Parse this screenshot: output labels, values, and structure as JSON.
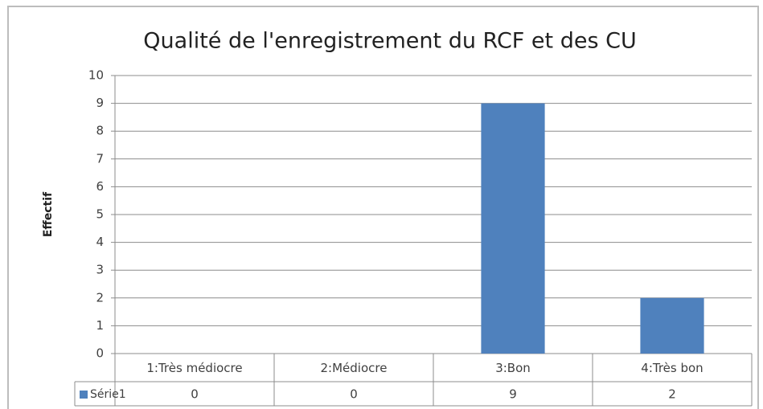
{
  "chart_data": {
    "type": "bar",
    "title": "Qualité de l'enregistrement du RCF et des CU",
    "y_label": "Effectif",
    "categories": [
      "1:Très médiocre",
      "2:Médiocre",
      "3:Bon",
      "4:Très bon"
    ],
    "series": [
      {
        "name": "Série1",
        "color": "#4f81bd",
        "values": [
          0,
          0,
          9,
          2
        ]
      }
    ],
    "ylim": [
      0,
      10
    ],
    "yticks": [
      0,
      1,
      2,
      3,
      4,
      5,
      6,
      7,
      8,
      9,
      10
    ],
    "grid": true
  }
}
